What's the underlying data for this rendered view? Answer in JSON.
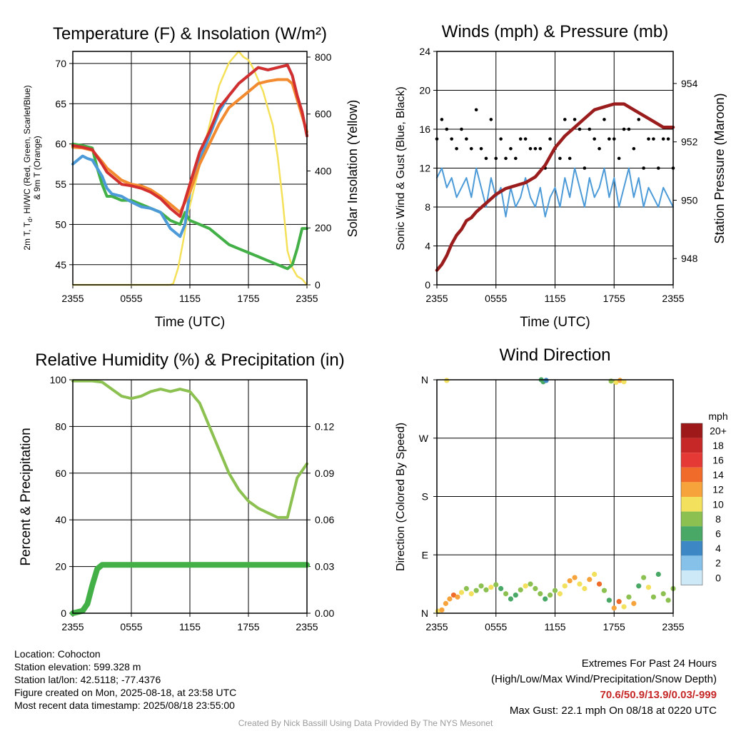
{
  "chart_data": [
    {
      "type": "line",
      "title": "Temperature (F) & Insolation (W/m²)",
      "xlabel": "Time (UTC)",
      "ylabel_left": "2m T, Td, HI/WC (Red, Green, Scarlet/Blue) & 9m T (Orange)",
      "ylabel_right": "Solar Insolation (Yellow)",
      "x_ticks": [
        "2355",
        "0555",
        "1155",
        "1755",
        "2355"
      ],
      "ylim_left": [
        42.5,
        71.5
      ],
      "yticks_left": [
        45,
        50,
        55,
        60,
        65,
        70
      ],
      "ylim_right": [
        0,
        820
      ],
      "yticks_right": [
        0,
        200,
        400,
        600,
        800
      ],
      "series": [
        {
          "color": "#d32f2f",
          "axis": "left",
          "x": [
            0,
            1,
            2,
            3,
            3.5,
            4,
            5,
            6,
            7,
            8,
            9,
            10,
            11,
            12,
            13,
            14,
            15,
            16,
            17,
            18,
            19,
            20,
            21,
            22,
            22.5,
            23,
            23.5,
            24
          ],
          "values": [
            59.8,
            59.6,
            59.3,
            57.5,
            56.5,
            56,
            55,
            54.8,
            54.5,
            54,
            53.2,
            52,
            51,
            55,
            59,
            61.5,
            64.5,
            66,
            67.5,
            68.5,
            69.5,
            69.2,
            69.5,
            69.8,
            68.5,
            66,
            64,
            61
          ]
        },
        {
          "color": "#f28a30",
          "axis": "left",
          "x": [
            0,
            1,
            2,
            3,
            3.5,
            4,
            5,
            6,
            7,
            8,
            9,
            10,
            11,
            12,
            13,
            14,
            15,
            16,
            17,
            18,
            19,
            20,
            21,
            22,
            22.5,
            23,
            23.5,
            24
          ],
          "values": [
            59.6,
            59.5,
            59.2,
            57.8,
            57,
            56.5,
            55.5,
            55,
            54.8,
            54.3,
            53.5,
            52.5,
            51.5,
            54,
            57.5,
            60,
            62.5,
            64.5,
            65.5,
            66.5,
            67.5,
            67.8,
            68,
            68,
            67.5,
            65.5,
            63.5,
            61.5
          ]
        },
        {
          "color": "#4c9bd8",
          "axis": "left",
          "x": [
            0,
            0.5,
            1,
            1.5,
            2,
            3,
            3.5,
            4,
            5,
            6,
            7,
            8,
            9,
            10,
            11,
            11.5,
            12,
            13,
            14,
            15,
            16,
            17,
            18,
            19,
            20,
            21,
            22,
            22.5,
            23,
            23.5,
            24
          ],
          "values": [
            57.5,
            58,
            58.5,
            58.2,
            58,
            56,
            54.5,
            53.8,
            53.5,
            52.8,
            52.2,
            52,
            51.5,
            49.5,
            48.5,
            50,
            54,
            58,
            61,
            64,
            66,
            67.5,
            68.5,
            69.5,
            69.2,
            69.5,
            69.8,
            68.5,
            66,
            64,
            61
          ]
        },
        {
          "color": "#43b047",
          "axis": "left",
          "x": [
            0,
            1,
            2,
            2.5,
            3,
            3.5,
            4,
            5,
            6,
            7,
            8,
            9,
            10,
            11,
            11.5,
            12,
            13,
            14,
            15,
            16,
            17,
            18,
            19,
            20,
            21,
            22,
            22.5,
            23,
            23.5,
            24
          ],
          "values": [
            60,
            59.8,
            59.5,
            57,
            55,
            53.5,
            53.5,
            53,
            53,
            52.5,
            52,
            51.5,
            50.5,
            50,
            51.5,
            50.5,
            50,
            49.5,
            48.5,
            47.5,
            47,
            46.5,
            46,
            45.5,
            45,
            44.5,
            45,
            47,
            49.5,
            49.5
          ]
        },
        {
          "color": "#f5e05a",
          "axis": "right",
          "x": [
            0,
            1,
            2,
            3,
            4,
            5,
            6,
            7,
            8,
            9,
            10,
            10.3,
            10.8,
            11.3,
            11.8,
            12.3,
            13,
            14,
            15,
            16,
            17,
            17.5,
            18,
            18.5,
            19,
            19.5,
            20,
            20.5,
            21,
            21.5,
            22,
            22.5,
            23,
            23.5,
            24
          ],
          "values": [
            0,
            0,
            0,
            0,
            0,
            0,
            0,
            0,
            0,
            0,
            0,
            5,
            60,
            150,
            250,
            320,
            420,
            560,
            700,
            780,
            820,
            800,
            790,
            760,
            720,
            680,
            620,
            560,
            450,
            300,
            120,
            60,
            30,
            20,
            0
          ]
        }
      ]
    },
    {
      "type": "line",
      "title": "Winds (mph) & Pressure (mb)",
      "xlabel": "Time (UTC)",
      "ylabel_left": "Sonic Wind & Gust (Blue, Black)",
      "ylabel_right": "Station Pressure (Maroon)",
      "x_ticks": [
        "2355",
        "0555",
        "1155",
        "1755",
        "2355"
      ],
      "ylim_left": [
        0,
        24
      ],
      "yticks_left": [
        0,
        4,
        8,
        12,
        16,
        20,
        24
      ],
      "ylim_right": [
        947.1,
        955.1
      ],
      "yticks_right": [
        948,
        950,
        952,
        954
      ],
      "series": [
        {
          "color": "#4c9bd8",
          "axis": "left",
          "x": [
            0,
            0.5,
            1,
            1.5,
            2,
            2.5,
            3,
            3.5,
            4,
            4.5,
            5,
            5.5,
            6,
            6.5,
            7,
            7.5,
            8,
            8.5,
            9,
            9.5,
            10,
            10.5,
            11,
            11.5,
            12,
            12.5,
            13,
            13.5,
            14,
            14.5,
            15,
            15.5,
            16,
            16.5,
            17,
            17.5,
            18,
            18.5,
            19,
            19.5,
            20,
            20.5,
            21,
            21.5,
            22,
            22.5,
            23,
            23.5,
            24
          ],
          "values": [
            11,
            12,
            10,
            11,
            9,
            10,
            11,
            9,
            12,
            10,
            8,
            11,
            9,
            10,
            7,
            10,
            8,
            9,
            11,
            9,
            8,
            10,
            7,
            9,
            10,
            8,
            11,
            9,
            12,
            10,
            8,
            11,
            9,
            10,
            12,
            9,
            11,
            8,
            10,
            12,
            9,
            11,
            8,
            10,
            9,
            8,
            10,
            9,
            8
          ]
        },
        {
          "color": "#9a1c1c",
          "axis": "right",
          "x": [
            0,
            0.5,
            1,
            1.5,
            2,
            2.5,
            3,
            3.5,
            4,
            5,
            6,
            7,
            8,
            9,
            10,
            11,
            12,
            13,
            14,
            15,
            16,
            17,
            18,
            19,
            20,
            21,
            22,
            22.5,
            23,
            23.5,
            24
          ],
          "values": [
            947.6,
            947.8,
            948.1,
            948.5,
            948.8,
            949,
            949.3,
            949.4,
            949.6,
            949.9,
            950.2,
            950.4,
            950.5,
            950.6,
            950.8,
            951.2,
            951.8,
            952.2,
            952.5,
            952.8,
            953.1,
            953.2,
            953.3,
            953.3,
            953.1,
            952.9,
            952.7,
            952.6,
            952.5,
            952.5,
            952.5
          ]
        }
      ]
    },
    {
      "type": "line",
      "title": "Relative Humidity (%) & Precipitation (in)",
      "ylabel_left": "Percent & Precipitation",
      "x_ticks": [
        "2355",
        "0555",
        "1155",
        "1755",
        "2355"
      ],
      "ylim_left": [
        0,
        100
      ],
      "yticks_left": [
        0,
        20,
        40,
        60,
        80,
        100
      ],
      "ylim_right": [
        0,
        0.15
      ],
      "yticks_right": [
        "0.00",
        "0.03",
        "0.06",
        "0.09",
        "0.12"
      ],
      "series": [
        {
          "color": "#8cc152",
          "axis": "left",
          "x": [
            0,
            1,
            2,
            3,
            4,
            5,
            6,
            7,
            8,
            9,
            10,
            11,
            12,
            13,
            14,
            15,
            16,
            17,
            18,
            19,
            20,
            21,
            22,
            23,
            24
          ],
          "values": [
            99.5,
            99.5,
            99.5,
            99,
            96,
            93,
            92,
            93,
            95,
            96,
            95,
            96,
            95,
            90,
            80,
            70,
            60,
            53,
            48,
            45,
            43,
            41,
            41,
            58,
            64
          ]
        },
        {
          "color": "#43b047",
          "axis": "left",
          "x": [
            0,
            1,
            1.5,
            2,
            2.5,
            3,
            4,
            5,
            6,
            7,
            8,
            9,
            10,
            11,
            12,
            13,
            14,
            15,
            16,
            17,
            18,
            19,
            20,
            21,
            22,
            23,
            24
          ],
          "values": [
            0,
            1,
            4,
            12,
            19,
            20.7,
            20.7,
            20.7,
            20.7,
            20.7,
            20.7,
            20.7,
            20.7,
            20.7,
            20.7,
            20.7,
            20.7,
            20.7,
            20.7,
            20.7,
            20.7,
            20.7,
            20.7,
            20.7,
            20.7,
            20.7,
            20.7
          ]
        }
      ]
    },
    {
      "type": "scatter",
      "title": "Wind Direction",
      "ylabel_left": "Direction (Colored By Speed)",
      "x_ticks": [
        "2355",
        "0555",
        "1155",
        "1755",
        "2355"
      ],
      "y_ticks": [
        "N",
        "E",
        "S",
        "W",
        "N"
      ],
      "ylim_degrees": [
        0,
        360
      ],
      "legend_title": "mph",
      "legend_labels": [
        "20+",
        "18",
        "16",
        "14",
        "12",
        "10",
        "8",
        "6",
        "4",
        "2",
        "0"
      ],
      "legend_colors": [
        "#9e1a1a",
        "#c62828",
        "#e53935",
        "#f06a2a",
        "#f7a33b",
        "#f3e05c",
        "#8cc152",
        "#4aa866",
        "#3d87c4",
        "#85c1e9",
        "#cde8f7"
      ],
      "points": [
        {
          "x": 0.1,
          "y": 3,
          "s": 9
        },
        {
          "x": 0.5,
          "y": 5,
          "s": 12
        },
        {
          "x": 0.9,
          "y": 15,
          "s": 11
        },
        {
          "x": 1.3,
          "y": 22,
          "s": 12
        },
        {
          "x": 1.7,
          "y": 28,
          "s": 13
        },
        {
          "x": 2.1,
          "y": 25,
          "s": 12
        },
        {
          "x": 2.5,
          "y": 32,
          "s": 9
        },
        {
          "x": 3.0,
          "y": 38,
          "s": 8
        },
        {
          "x": 3.5,
          "y": 30,
          "s": 9
        },
        {
          "x": 4.0,
          "y": 35,
          "s": 8
        },
        {
          "x": 4.5,
          "y": 42,
          "s": 8
        },
        {
          "x": 5.0,
          "y": 36,
          "s": 8
        },
        {
          "x": 5.5,
          "y": 40,
          "s": 9
        },
        {
          "x": 6.0,
          "y": 44,
          "s": 8
        },
        {
          "x": 6.5,
          "y": 38,
          "s": 6
        },
        {
          "x": 7.0,
          "y": 30,
          "s": 8
        },
        {
          "x": 7.5,
          "y": 22,
          "s": 5
        },
        {
          "x": 8.0,
          "y": 28,
          "s": 6
        },
        {
          "x": 8.5,
          "y": 36,
          "s": 8
        },
        {
          "x": 9.0,
          "y": 42,
          "s": 9
        },
        {
          "x": 9.5,
          "y": 45,
          "s": 8
        },
        {
          "x": 10.0,
          "y": 38,
          "s": 7
        },
        {
          "x": 10.5,
          "y": 30,
          "s": 8
        },
        {
          "x": 11.0,
          "y": 22,
          "s": 5
        },
        {
          "x": 11.5,
          "y": 28,
          "s": 7
        },
        {
          "x": 12.0,
          "y": 35,
          "s": 8
        },
        {
          "x": 12.5,
          "y": 30,
          "s": 9
        },
        {
          "x": 13.0,
          "y": 42,
          "s": 10
        },
        {
          "x": 13.5,
          "y": 50,
          "s": 11
        },
        {
          "x": 14.0,
          "y": 55,
          "s": 12
        },
        {
          "x": 14.5,
          "y": 45,
          "s": 10
        },
        {
          "x": 15.0,
          "y": 38,
          "s": 9
        },
        {
          "x": 15.5,
          "y": 52,
          "s": 11
        },
        {
          "x": 16.0,
          "y": 60,
          "s": 10
        },
        {
          "x": 16.5,
          "y": 45,
          "s": 13
        },
        {
          "x": 17.0,
          "y": 35,
          "s": 8
        },
        {
          "x": 17.5,
          "y": 20,
          "s": 5
        },
        {
          "x": 18.0,
          "y": 8,
          "s": 11
        },
        {
          "x": 18.5,
          "y": 18,
          "s": 13
        },
        {
          "x": 19.0,
          "y": 10,
          "s": 10
        },
        {
          "x": 19.5,
          "y": 25,
          "s": 8
        },
        {
          "x": 20.0,
          "y": 15,
          "s": 11
        },
        {
          "x": 20.5,
          "y": 42,
          "s": 6
        },
        {
          "x": 21.0,
          "y": 55,
          "s": 7
        },
        {
          "x": 21.5,
          "y": 40,
          "s": 9
        },
        {
          "x": 22.0,
          "y": 25,
          "s": 8
        },
        {
          "x": 22.5,
          "y": 60,
          "s": 6
        },
        {
          "x": 23.0,
          "y": 30,
          "s": 7
        },
        {
          "x": 23.5,
          "y": 20,
          "s": 8
        },
        {
          "x": 24.0,
          "y": 38,
          "s": 8
        },
        {
          "x": 1.0,
          "y": 359,
          "s": 10
        },
        {
          "x": 10.6,
          "y": 360,
          "s": 6
        },
        {
          "x": 10.8,
          "y": 357,
          "s": 5
        },
        {
          "x": 11.1,
          "y": 359,
          "s": 4
        },
        {
          "x": 17.7,
          "y": 358,
          "s": 8
        },
        {
          "x": 18.2,
          "y": 356,
          "s": 10
        },
        {
          "x": 18.6,
          "y": 359,
          "s": 11
        },
        {
          "x": 19.0,
          "y": 357,
          "s": 10
        }
      ]
    }
  ],
  "info": {
    "location": "Location: Cohocton",
    "elevation": "Station elevation: 599.328 m",
    "latlon": "Station lat/lon: 42.5118; -77.4376",
    "created": "Figure created on Mon, 2025-08-18, at 23:58 UTC",
    "recent": "Most recent data timestamp: 2025/08/18 23:55:00"
  },
  "extremes": {
    "title": "Extremes For Past 24 Hours",
    "subtitle": "(High/Low/Max Wind/Precipitation/Snow Depth)",
    "values": "70.6/50.9/13.9/0.03/-999",
    "gust": "Max Gust: 22.1 mph On 08/18 at 0220 UTC"
  },
  "credit": "Created By Nick Bassill Using Data Provided By The NYS Mesonet"
}
